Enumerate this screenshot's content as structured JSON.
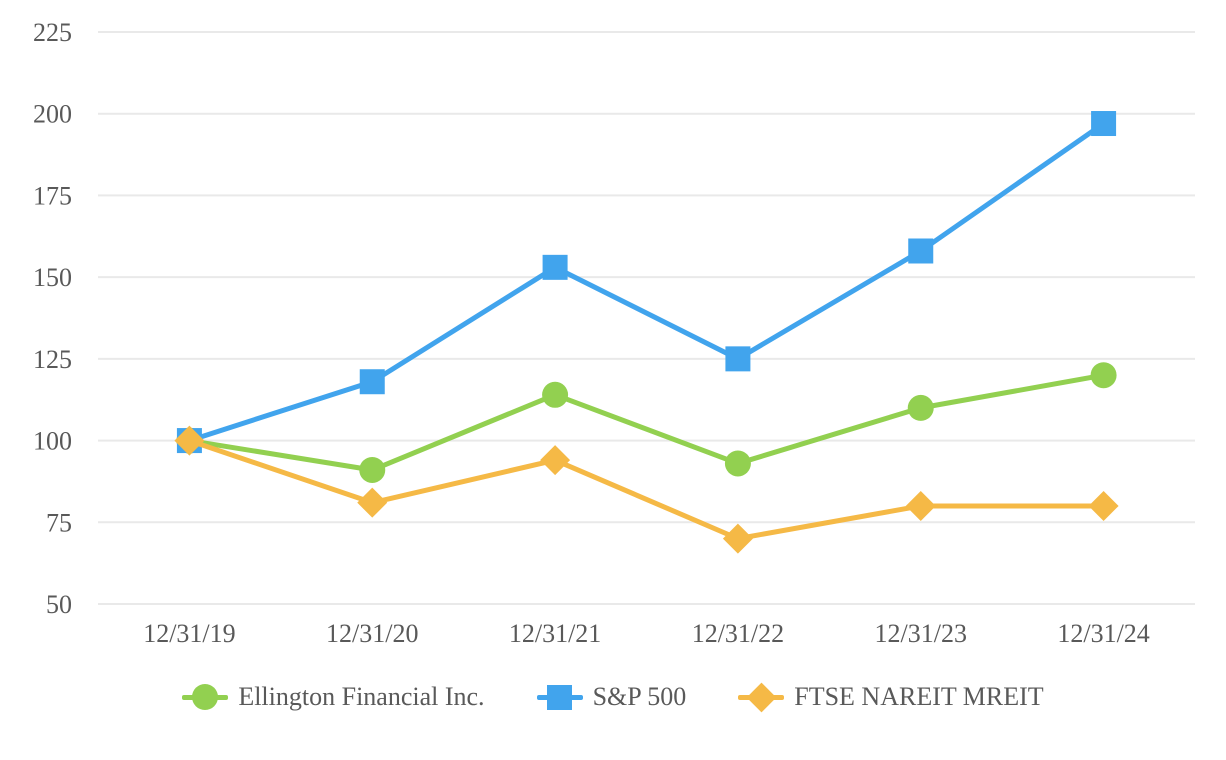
{
  "chart_data": {
    "type": "line",
    "title": "",
    "xlabel": "",
    "ylabel": "",
    "categories": [
      "12/31/19",
      "12/31/20",
      "12/31/21",
      "12/31/22",
      "12/31/23",
      "12/31/24"
    ],
    "series": [
      {
        "name": "Ellington Financial Inc.",
        "marker": "circle",
        "color": "#92D050",
        "values": [
          100,
          91,
          114,
          93,
          110,
          120
        ]
      },
      {
        "name": "S&P 500",
        "marker": "square",
        "color": "#41A4ED",
        "values": [
          100,
          118,
          153,
          125,
          158,
          197
        ]
      },
      {
        "name": "FTSE NAREIT MREIT",
        "marker": "diamond",
        "color": "#F5B946",
        "values": [
          100,
          81,
          94,
          70,
          80,
          80
        ]
      }
    ],
    "y_ticks": [
      225,
      200,
      175,
      150,
      125,
      100,
      75,
      50
    ],
    "ylim": [
      50,
      225
    ],
    "grid": true,
    "legend_position": "bottom"
  },
  "styles": {
    "grid_color": "#E9E9E9",
    "text_color": "#595959",
    "background": "#FFFFFF"
  }
}
